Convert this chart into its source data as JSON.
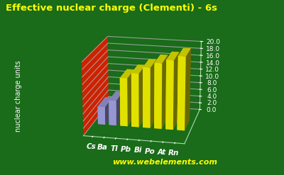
{
  "title": "Effective nuclear charge (Clementi) - 6s",
  "ylabel": "nuclear charge units",
  "elements": [
    "Cs",
    "Ba",
    "Tl",
    "Pb",
    "Bi",
    "Po",
    "At",
    "Rn"
  ],
  "values": [
    5.0,
    7.0,
    13.5,
    15.0,
    16.8,
    18.2,
    19.2,
    20.4
  ],
  "bar_colors": [
    "#aaaaee",
    "#aaaaee",
    "#ffff00",
    "#ffff00",
    "#ffff00",
    "#ffff00",
    "#ffff00",
    "#ffff00"
  ],
  "bar_edge_colors": [
    "#8888cc",
    "#8888cc",
    "#cccc00",
    "#cccc00",
    "#cccc00",
    "#cccc00",
    "#cccc00",
    "#cccc00"
  ],
  "background_color": "#1a6b1a",
  "floor_color": "#cc2200",
  "title_color": "#ffff00",
  "label_color": "#ffffff",
  "tick_color": "#ffffff",
  "element_label_color": "#ffffff",
  "website_text": "www.webelements.com",
  "website_color": "#ffff00",
  "ylim": [
    0,
    20.0
  ],
  "yticks": [
    0.0,
    2.0,
    4.0,
    6.0,
    8.0,
    10.0,
    12.0,
    14.0,
    16.0,
    18.0,
    20.0
  ],
  "grid_color": "#aaddaa",
  "title_fontsize": 9.5,
  "label_fontsize": 7,
  "tick_fontsize": 6.5,
  "element_fontsize": 7.5,
  "website_fontsize": 8
}
